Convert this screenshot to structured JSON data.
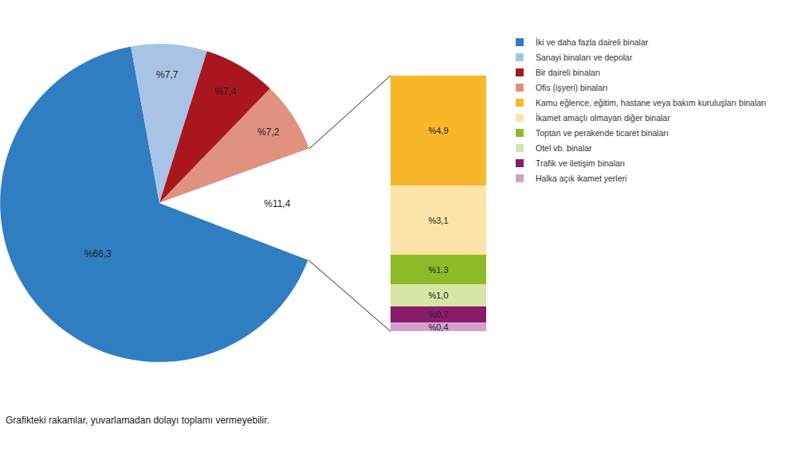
{
  "chart_data": [
    {
      "type": "pie",
      "categories": [
        "İki ve daha fazla daireli binalar",
        "Sanayi binaları ve depolar",
        "Bir daireli binaları",
        "Ofis (işyeri) binaları",
        null
      ],
      "values": [
        66.3,
        7.7,
        7.4,
        7.2,
        11.4
      ],
      "value_labels": [
        "%66,3",
        "%7,7",
        "%7,4",
        "%7,2",
        "%11,4"
      ],
      "colors": [
        "#2f7ec1",
        "#a9c3e6",
        "#a9161d",
        "#e0917f",
        "#ffffff"
      ],
      "data_labels": true,
      "annotations": [
        "Grafikteki rakamlar, yuvarlamadan dolayı toplamı vermeyebilir."
      ]
    },
    {
      "type": "bar",
      "stacked": true,
      "categories": [
        null
      ],
      "series": [
        {
          "name": "Kamu eğlence, eğitim, hastane veya bakım kuruluşları binaları",
          "color": "#f8b728",
          "values": [
            4.9
          ],
          "value_labels": [
            "%4,9"
          ]
        },
        {
          "name": "İkamet amaçlı olmayan diğer binalar",
          "color": "#fce3a8",
          "values": [
            3.1
          ],
          "value_labels": [
            "%3,1"
          ]
        },
        {
          "name": "Toptan ve perakende ticaret binaları",
          "color": "#8cbb27",
          "values": [
            1.3
          ],
          "value_labels": [
            "%1,3"
          ]
        },
        {
          "name": "Otel vb. binalar",
          "color": "#d5e6a6",
          "values": [
            1.0
          ],
          "value_labels": [
            "%1,0"
          ]
        },
        {
          "name": "Trafik ve iletişim binaları",
          "color": "#8a1a6c",
          "values": [
            0.7
          ],
          "value_labels": [
            "%0,7"
          ]
        },
        {
          "name": "Halka açık ikamet yerleri",
          "color": "#d3a0cc",
          "values": [
            0.4
          ],
          "value_labels": [
            "%0,4"
          ]
        }
      ],
      "ylim": [
        0,
        11.4
      ],
      "data_labels": true,
      "tick_labels": false
    }
  ]
}
